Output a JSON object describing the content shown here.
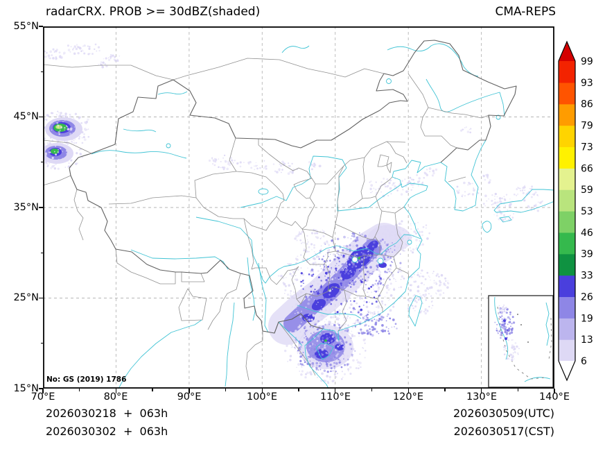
{
  "header": {
    "title": "radarCRX. PROB >= 30dBZ(shaded)",
    "source": "CMA-REPS"
  },
  "axes": {
    "lat_ticks": [
      "55°N",
      "45°N",
      "35°N",
      "25°N",
      "15°N"
    ],
    "lon_ticks": [
      "70°E",
      "80°E",
      "90°E",
      "100°E",
      "110°E",
      "120°E",
      "130°E",
      "140°E"
    ]
  },
  "map": {
    "license_note": "No: GS (2019) 1786"
  },
  "colorbar": {
    "levels": [
      6,
      13,
      19,
      26,
      33,
      39,
      46,
      53,
      59,
      66,
      73,
      79,
      86,
      93,
      99
    ],
    "colors": [
      "#ded9f5",
      "#bcb5ee",
      "#8e86e6",
      "#4a3fdd",
      "#0f9241",
      "#35b94d",
      "#7ed166",
      "#b9e47d",
      "#e4f28f",
      "#fff100",
      "#ffd400",
      "#ff9c00",
      "#ff5400",
      "#f32300"
    ],
    "over_color": "#d40000",
    "under_color": "#ffffff"
  },
  "footer": {
    "init_utc": "2026030218  +  063h",
    "init_cst": "2026030302  +  063h",
    "valid_utc": "2026030509(UTC)",
    "valid_cst": "2026030517(CST)"
  },
  "chart_data": {
    "type": "heatmap",
    "title": "radarCRX. PROB >= 30dBZ(shaded)",
    "model": "CMA-REPS",
    "variable": "Ensemble probability of composite radar reflectivity >= 30 dBZ (%)",
    "lon_range_deg_e": [
      70,
      140
    ],
    "lat_range_deg_n": [
      15,
      55
    ],
    "xticks": [
      "70°E",
      "80°E",
      "90°E",
      "100°E",
      "110°E",
      "120°E",
      "130°E",
      "140°E"
    ],
    "yticks": [
      "15°N",
      "25°N",
      "35°N",
      "45°N",
      "55°N"
    ],
    "prob_levels_percent": [
      6,
      13,
      19,
      26,
      33,
      39,
      46,
      53,
      59,
      66,
      73,
      79,
      86,
      93,
      99
    ],
    "colorbar_extend": "both",
    "init_time_utc": "2026030218",
    "init_time_cst": "2026030302",
    "lead_time": "063h",
    "valid_time_utc": "2026030509",
    "valid_time_cst": "2026030517",
    "shaded_features": [
      {
        "region": "Western Xinjiang border, 71-77E / 39-45N",
        "peak_band": "46-59",
        "desc": "two compact maxima, bright green cores ringed by blue then lavender"
      },
      {
        "region": "SW-NE band Guangxi/Guizhou-Hunan-Jiangxi-Hubei/Anhui, 103-119E / 22-32N",
        "peak_band": "26-33",
        "desc": "broad 6-19 envelope with embedded blue 19-33 cores along the band"
      },
      {
        "region": "Gulf of Tonkin / Hainan / Vietnam coast, 104-112E / 15-22N",
        "peak_band": "26-33",
        "desc": "dense speckled cluster"
      },
      {
        "region": "Jiangsu-Anhui-Zhejiang, 115-121E / 29-33N",
        "peak_band": "13-19",
        "desc": "light shading"
      },
      {
        "region": "Taiwan and Fujian coast",
        "peak_band": "6-13",
        "desc": "scattered light speckles"
      },
      {
        "region": "North China / Shandong, 114-122E / 35-39N",
        "peak_band": "6-13",
        "desc": "scattered light speckles"
      },
      {
        "region": "Korea Strait / Japan, 128-138E / 32-38N",
        "peak_band": "6-13",
        "desc": "scattered light speckles"
      },
      {
        "region": "Northwest corner (Kazakhstan), 70-82E / 50-54N",
        "peak_band": "6-13",
        "desc": "faint patches"
      },
      {
        "region": "Hexi corridor / SW Mongolia border, 92-106E / 38-41N",
        "peak_band": "6-13",
        "desc": "faint speckles"
      },
      {
        "region": "South China Sea inset panel",
        "peak_band": "13-19",
        "desc": "speckled shading, upper-left of inset"
      }
    ]
  }
}
